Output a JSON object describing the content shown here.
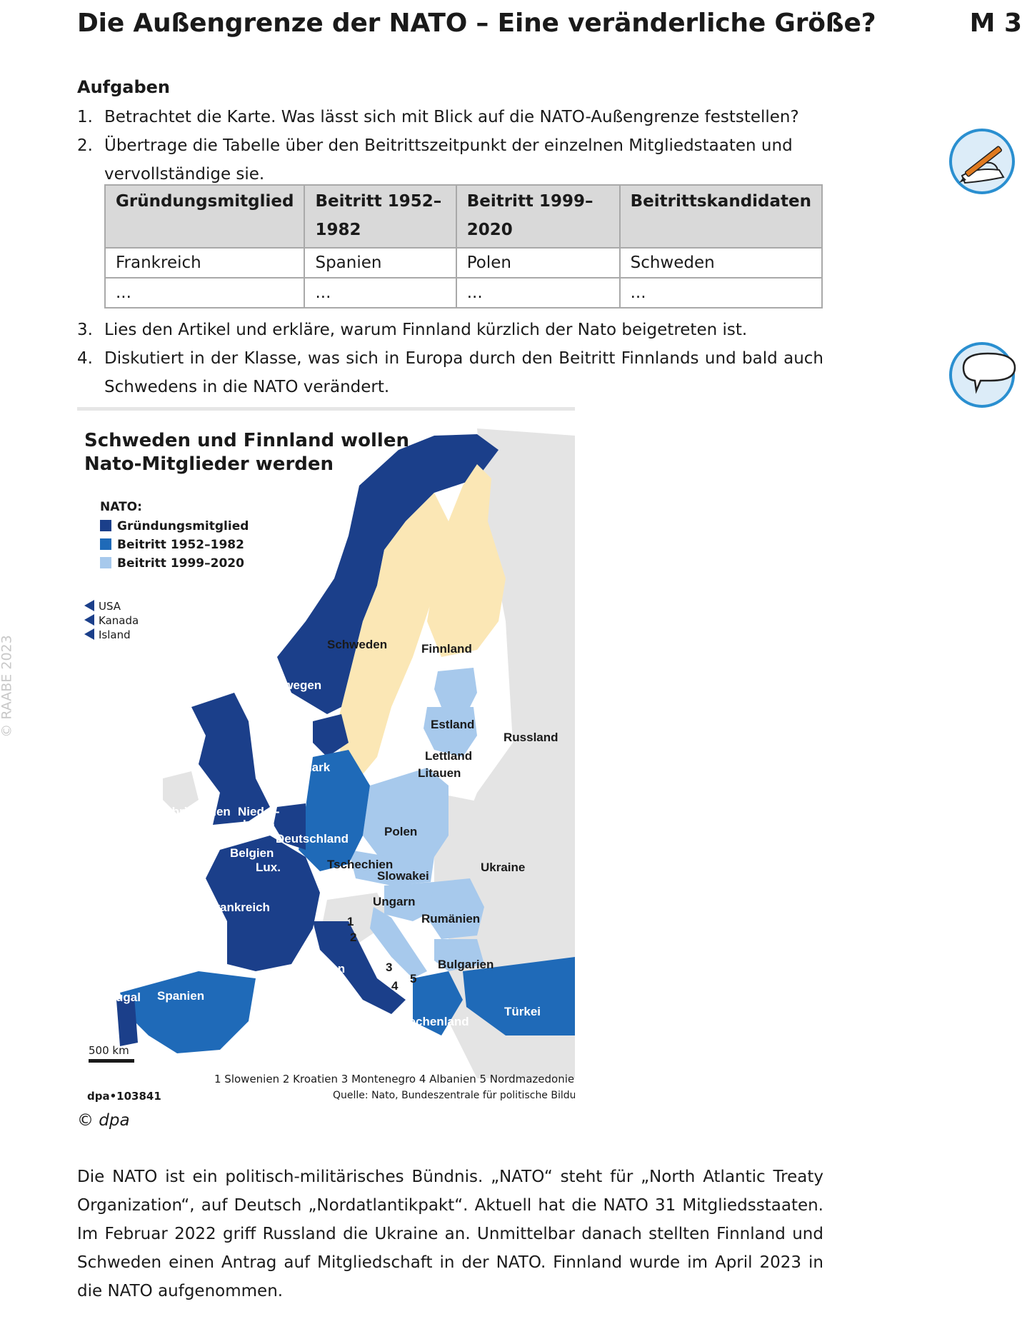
{
  "header": {
    "title": "Die Außengrenze der NATO – Eine veränderliche Größe?",
    "material": "M 3"
  },
  "tasks_heading": "Aufgaben",
  "tasks": [
    {
      "num": "1.",
      "text": "Betrachtet die Karte. Was lässt sich mit Blick auf die NATO-Außengrenze feststellen?"
    },
    {
      "num": "2.",
      "text": "Übertrage die Tabelle über den Beitrittszeitpunkt der einzelnen Mitgliedstaaten und vervollständige sie."
    },
    {
      "num": "3.",
      "text": "Lies den Artikel und erkläre, warum Finnland kürzlich der Nato beigetreten ist."
    },
    {
      "num": "4.",
      "text": "Diskutiert in der Klasse, was sich in Europa durch den Beitritt Finnlands und bald auch Schwedens in die NATO verändert."
    }
  ],
  "table": {
    "headers": [
      "Gründungsmitglied",
      "Beitritt 1952–1982",
      "Beitritt 1999–2020",
      "Beitrittskandidaten"
    ],
    "rows": [
      [
        "Frankreich",
        "Spanien",
        "Polen",
        "Schweden"
      ],
      [
        "...",
        "...",
        "...",
        "..."
      ]
    ]
  },
  "side_copyright": "© RAABE 2023",
  "icons": {
    "write": "pencil-writing-icon",
    "discuss": "speech-bubble-icon"
  },
  "map": {
    "title_line1": "Schweden und Finnland wollen",
    "title_line2": "Nato-Mitglieder werden",
    "legend_title": "NATO:",
    "legend": [
      {
        "label": "Gründungsmitglied",
        "color": "#1b3f8a"
      },
      {
        "label": "Beitritt 1952–1982",
        "color": "#1f6ab8"
      },
      {
        "label": "Beitritt 1999–2020",
        "color": "#a7c9ec"
      }
    ],
    "overseas": [
      "USA",
      "Kanada",
      "Island"
    ],
    "candidate_color": "#fbe7b5",
    "nonmember_color": "#e4e4e4",
    "countries": {
      "schweden": "Schweden",
      "finnland": "Finnland",
      "norwegen": "Norwegen",
      "estland": "Estland",
      "russland": "Russland",
      "lettland": "Lettland",
      "litauen": "Litauen",
      "daenemark": "Dänemark",
      "grossbritannien": "Großbritannien",
      "niederlande_1": "Nieder-",
      "niederlande_2": "lande",
      "polen": "Polen",
      "deutschland": "Deutschland",
      "belgien": "Belgien",
      "lux": "Lux.",
      "tschechien": "Tschechien",
      "slowakei": "Slowakei",
      "ukraine": "Ukraine",
      "ungarn": "Ungarn",
      "frankreich": "Frankreich",
      "rumaenien": "Rumänien",
      "italien": "Italien",
      "bulgarien": "Bulgarien",
      "portugal": "Portugal",
      "spanien": "Spanien",
      "tuerkei": "Türkei",
      "griechenland": "Griechenland"
    },
    "numbers": [
      "1",
      "2",
      "3",
      "4",
      "5"
    ],
    "scale": "500 km",
    "footnote": "1 Slowenien   2 Kroatien   3 Montenegro   4 Albanien   5 Nordmazedonien",
    "source": "Quelle: Nato, Bundeszentrale für politische Bildung",
    "code": "dpa•103841"
  },
  "map_credit": "© dpa",
  "article": "Die NATO ist ein politisch-militärisches Bündnis. „NATO“ steht für „North Atlantic Treaty Organization“, auf Deutsch „Nordatlantikpakt“. Aktuell hat die NATO 31 Mitgliedsstaaten. Im Februar 2022 griff Russland die Ukraine an. Unmittelbar danach stellten Finnland und Schweden einen Antrag auf Mitgliedschaft in der NATO. Finnland wurde im April 2023 in die NATO aufgenommen."
}
